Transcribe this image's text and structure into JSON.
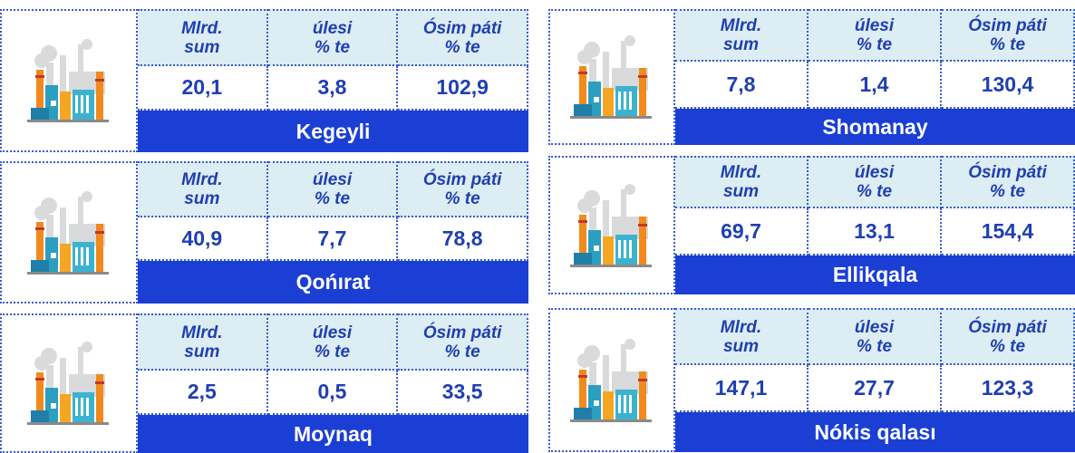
{
  "columns": [
    [
      "Mlrd.",
      "sum"
    ],
    [
      "úlesi",
      "% te"
    ],
    [
      "Ósim páti",
      "% te"
    ]
  ],
  "cards": [
    {
      "name": "Kegeyli",
      "values": [
        "20,1",
        "3,8",
        "102,9"
      ]
    },
    {
      "name": "Qońırat",
      "values": [
        "40,9",
        "7,7",
        "78,8"
      ]
    },
    {
      "name": "Moynaq",
      "values": [
        "2,5",
        "0,5",
        "33,5"
      ]
    },
    {
      "name": "Shomanay",
      "values": [
        "7,8",
        "1,4",
        "130,4"
      ]
    },
    {
      "name": "Ellikqala",
      "values": [
        "69,7",
        "13,1",
        "154,4"
      ]
    },
    {
      "name": "Nókis qalası",
      "values": [
        "147,1",
        "27,7",
        "123,3"
      ]
    }
  ]
}
